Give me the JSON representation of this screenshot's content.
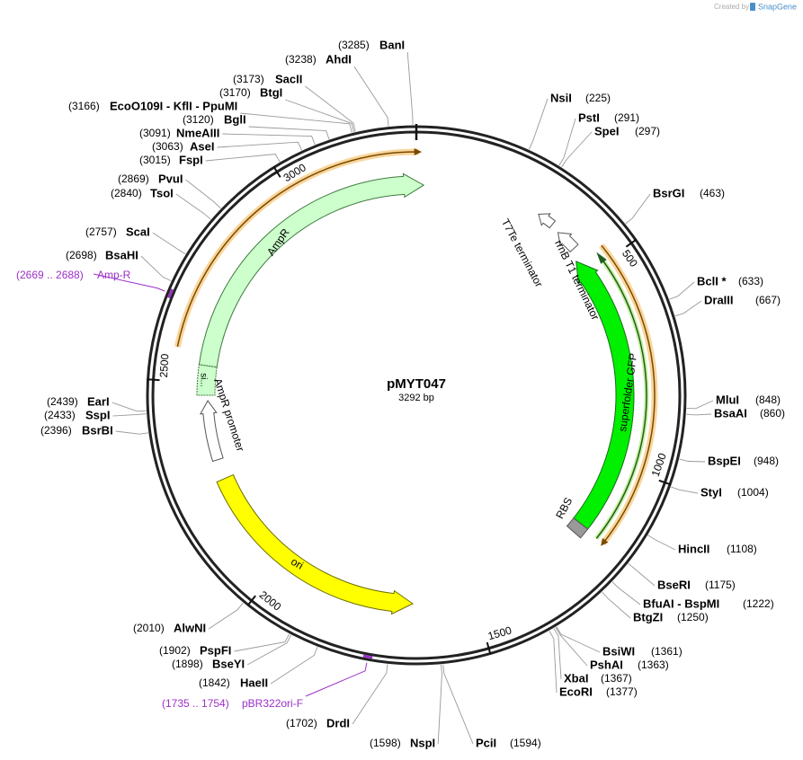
{
  "header": {
    "created_by": "Created by",
    "brand": "SnapGene"
  },
  "plasmid": {
    "name": "pMYT047",
    "length": {
      "value": 3292,
      "label": "3292 bp"
    },
    "ticks": [
      500,
      1000,
      1500,
      2000,
      2500,
      3000
    ]
  },
  "enzymes": [
    {
      "name": "NsiI",
      "position": {
        "value": 225,
        "label": "(225)"
      }
    },
    {
      "name": "PstI",
      "position": {
        "value": 291,
        "label": "(291)"
      }
    },
    {
      "name": "SpeI",
      "position": {
        "value": 297,
        "label": "(297)"
      }
    },
    {
      "name": "BsrGI",
      "position": {
        "value": 463,
        "label": "(463)"
      }
    },
    {
      "name": "BclI *",
      "position": {
        "value": 633,
        "label": "(633)"
      }
    },
    {
      "name": "DraIII",
      "position": {
        "value": 667,
        "label": "(667)"
      }
    },
    {
      "name": "MluI",
      "position": {
        "value": 848,
        "label": "(848)"
      }
    },
    {
      "name": "BsaAI",
      "position": {
        "value": 860,
        "label": "(860)"
      }
    },
    {
      "name": "BspEI",
      "position": {
        "value": 948,
        "label": "(948)"
      }
    },
    {
      "name": "StyI",
      "position": {
        "value": 1004,
        "label": "(1004)"
      }
    },
    {
      "name": "HincII",
      "position": {
        "value": 1108,
        "label": "(1108)"
      }
    },
    {
      "name": "BseRI",
      "position": {
        "value": 1175,
        "label": "(1175)"
      }
    },
    {
      "name": "BfuAI - BspMI",
      "position": {
        "value": 1222,
        "label": "(1222)"
      }
    },
    {
      "name": "BtgZI",
      "position": {
        "value": 1250,
        "label": "(1250)"
      }
    },
    {
      "name": "BsiWI",
      "position": {
        "value": 1361,
        "label": "(1361)"
      }
    },
    {
      "name": "PshAI",
      "position": {
        "value": 1363,
        "label": "(1363)"
      }
    },
    {
      "name": "XbaI",
      "position": {
        "value": 1367,
        "label": "(1367)"
      }
    },
    {
      "name": "EcoRI",
      "position": {
        "value": 1377,
        "label": "(1377)"
      }
    },
    {
      "name": "PciI",
      "position": {
        "value": 1594,
        "label": "(1594)"
      }
    },
    {
      "name": "NspI",
      "position": {
        "value": 1598,
        "label": "(1598)"
      }
    },
    {
      "name": "DrdI",
      "position": {
        "value": 1702,
        "label": "(1702)"
      }
    },
    {
      "name": "HaeII",
      "position": {
        "value": 1842,
        "label": "(1842)"
      }
    },
    {
      "name": "BseYI",
      "position": {
        "value": 1898,
        "label": "(1898)"
      }
    },
    {
      "name": "PspFI",
      "position": {
        "value": 1902,
        "label": "(1902)"
      }
    },
    {
      "name": "AlwNI",
      "position": {
        "value": 2010,
        "label": "(2010)"
      }
    },
    {
      "name": "BsrBI",
      "position": {
        "value": 2396,
        "label": "(2396)"
      }
    },
    {
      "name": "SspI",
      "position": {
        "value": 2433,
        "label": "(2433)"
      }
    },
    {
      "name": "EarI",
      "position": {
        "value": 2439,
        "label": "(2439)"
      }
    },
    {
      "name": "BsaHI",
      "position": {
        "value": 2698,
        "label": "(2698)"
      }
    },
    {
      "name": "ScaI",
      "position": {
        "value": 2757,
        "label": "(2757)"
      }
    },
    {
      "name": "TsoI",
      "position": {
        "value": 2840,
        "label": "(2840)"
      }
    },
    {
      "name": "PvuI",
      "position": {
        "value": 2869,
        "label": "(2869)"
      }
    },
    {
      "name": "FspI",
      "position": {
        "value": 3015,
        "label": "(3015)"
      }
    },
    {
      "name": "AseI",
      "position": {
        "value": 3063,
        "label": "(3063)"
      }
    },
    {
      "name": "NmeAIII",
      "position": {
        "value": 3091,
        "label": "(3091)"
      }
    },
    {
      "name": "BglI",
      "position": {
        "value": 3120,
        "label": "(3120)"
      }
    },
    {
      "name": "EcoO109I - KflI - PpuMI",
      "position": {
        "value": 3166,
        "label": "(3166)"
      }
    },
    {
      "name": "BtgI",
      "position": {
        "value": 3170,
        "label": "(3170)"
      }
    },
    {
      "name": "SacII",
      "position": {
        "value": 3173,
        "label": "(3173)"
      }
    },
    {
      "name": "AhdI",
      "position": {
        "value": 3238,
        "label": "(3238)"
      }
    },
    {
      "name": "BanI",
      "position": {
        "value": 3285,
        "label": "(3285)"
      }
    }
  ],
  "features": [
    {
      "label": "AmpR"
    },
    {
      "label": "si..."
    },
    {
      "label": "AmpR promoter"
    },
    {
      "label": "ori"
    },
    {
      "label": "superfolder GFP"
    },
    {
      "label": "RBS"
    },
    {
      "label": "rrnB T1 terminator"
    },
    {
      "label": "T7Te terminator"
    }
  ],
  "primers": [
    {
      "range": "(2669 .. 2688)",
      "name": "Amp-R"
    },
    {
      "range": "(1735 .. 1754)",
      "name": "pBR322ori-F"
    }
  ]
}
